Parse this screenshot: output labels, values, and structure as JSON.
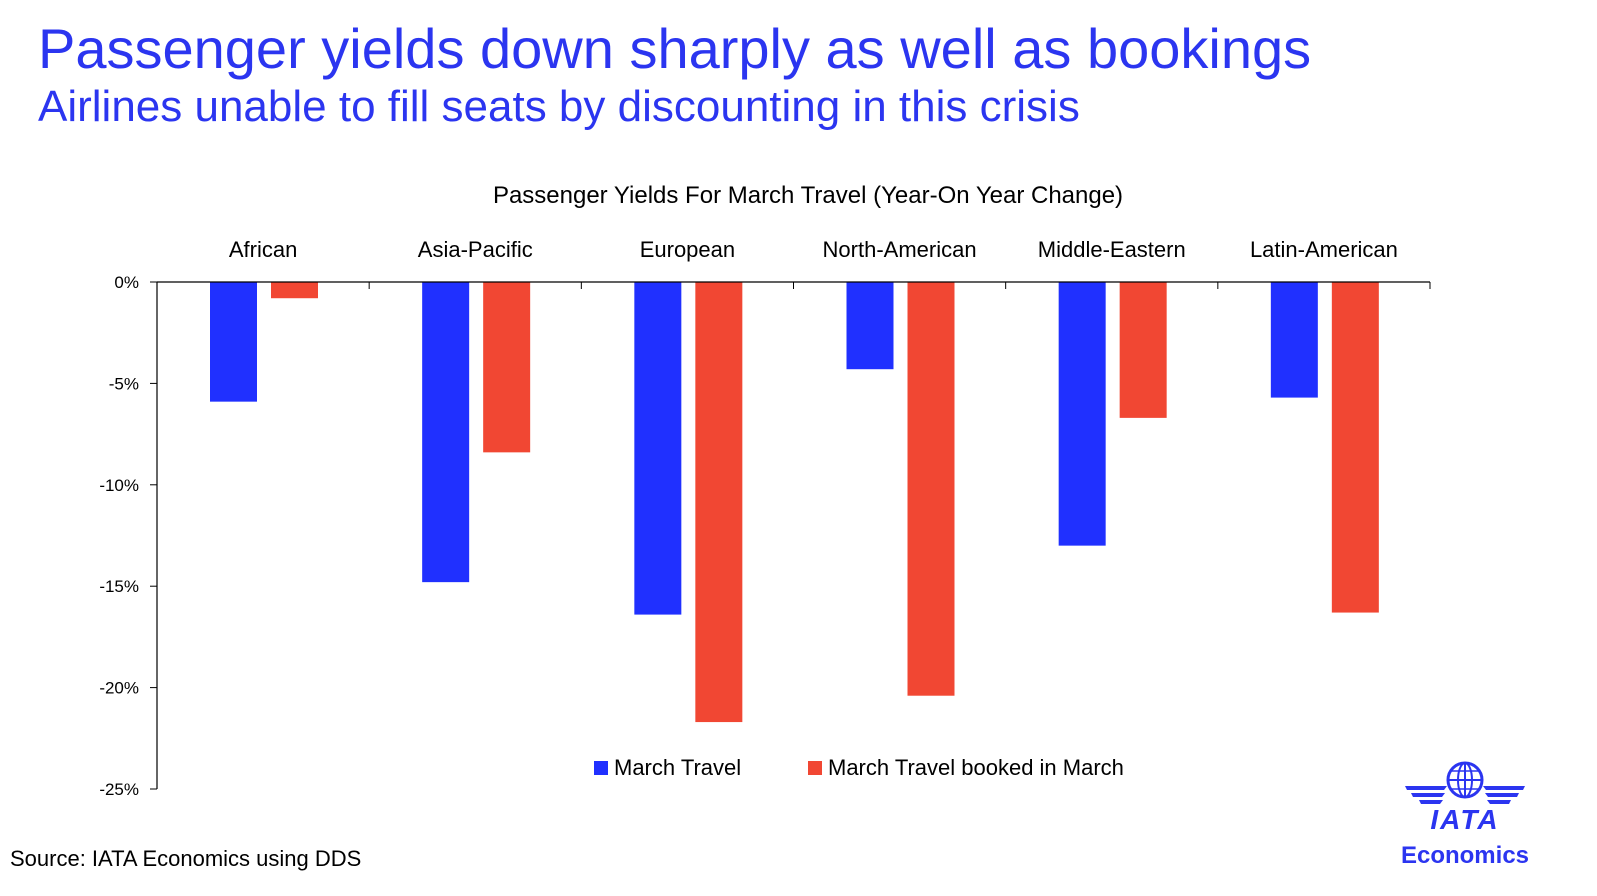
{
  "header": {
    "title": "Passenger yields down sharply as well as bookings",
    "subtitle": "Airlines unable to fill seats by discounting in this crisis"
  },
  "colors": {
    "accent": "#2b35f0",
    "series_march_travel": "#2030ff",
    "series_booked_in_march": "#f14733"
  },
  "chart_data": {
    "type": "bar",
    "title": "Passenger Yields For March Travel (Year-On Year Change)",
    "categories": [
      "African",
      "Asia-Pacific",
      "European",
      "North-American",
      "Middle-Eastern",
      "Latin-American"
    ],
    "series": [
      {
        "name": "March Travel",
        "values": [
          -5.9,
          -14.8,
          -16.4,
          -4.3,
          -13.0,
          -5.7
        ]
      },
      {
        "name": "March Travel booked in March",
        "values": [
          -0.8,
          -8.4,
          -21.7,
          -20.4,
          -6.7,
          -16.3
        ]
      }
    ],
    "ylim": [
      -25,
      0
    ],
    "yticks": [
      0,
      -5,
      -10,
      -15,
      -20,
      -25
    ],
    "ytick_labels": [
      "0%",
      "-5%",
      "-10%",
      "-15%",
      "-20%",
      "-25%"
    ],
    "xlabel": "",
    "ylabel": "",
    "category_labels_position": "top",
    "legend_position": "bottom-center",
    "grid": false
  },
  "footer": {
    "source": "Source: IATA Economics using DDS",
    "logo_text": "IATA",
    "logo_subtext": "Economics"
  }
}
